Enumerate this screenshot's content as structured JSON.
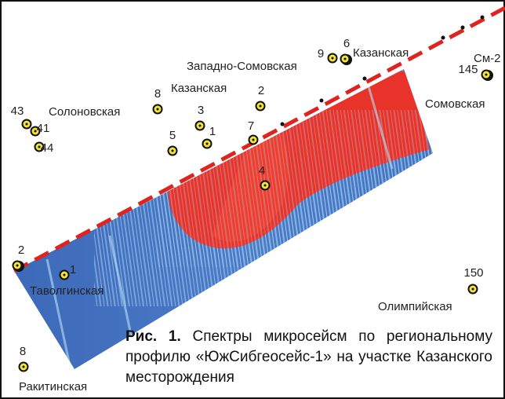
{
  "wells": [
    {
      "label": "43"
    },
    {
      "label": "41"
    },
    {
      "label": "44"
    },
    {
      "label": "8"
    },
    {
      "label": "3"
    },
    {
      "label": "1"
    },
    {
      "label": "5"
    },
    {
      "label": "2"
    },
    {
      "label": "7"
    },
    {
      "label": "4"
    },
    {
      "label": "9"
    },
    {
      "label": "6"
    },
    {
      "label": "145"
    },
    {
      "label": "2"
    },
    {
      "label": "1"
    },
    {
      "label": "150"
    },
    {
      "label": "8"
    }
  ],
  "areas": [
    "Солоновская",
    "Казанская",
    "Западно-Сомовская",
    "Казанская",
    "См-2",
    "Сомовская",
    "Таволгинская",
    "Олимпийская",
    "Ракитинская"
  ],
  "caption": {
    "label": "Рис. 1.",
    "text": "Спектры микросейсм по региональному профилю «ЮжСибгеосейс-1» на участке Казанского месторождения"
  }
}
